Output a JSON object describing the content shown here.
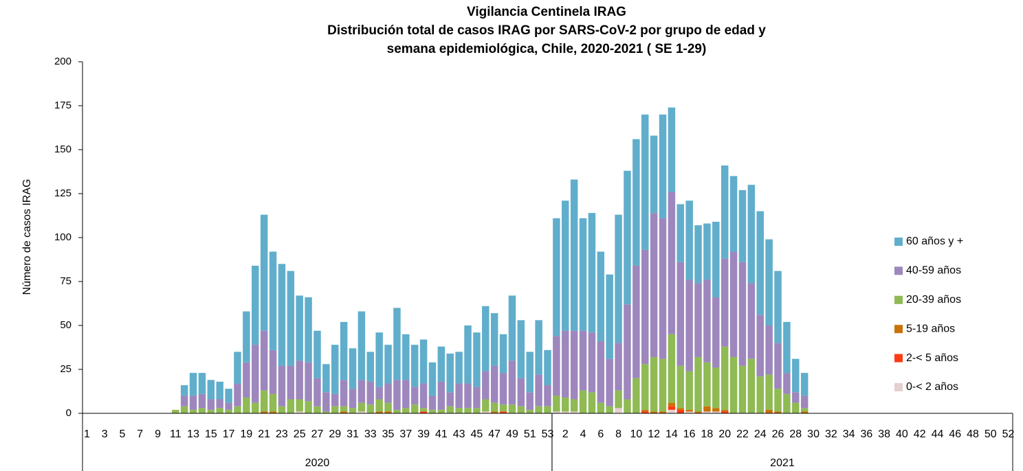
{
  "chart_data": {
    "type": "bar",
    "stacked": true,
    "title_lines": [
      "Vigilancia Centinela IRAG",
      "Distribución total de casos IRAG por SARS-CoV-2 por grupo de edad y",
      "semana epidemiológica,  Chile, 2020-2021 ( SE 1-29)"
    ],
    "y_label": "Número de casos IRAG",
    "groups": [
      {
        "label": "2020",
        "categories": [
          "1",
          null,
          "3",
          null,
          "5",
          null,
          "7",
          null,
          "9",
          null,
          "11",
          null,
          "13",
          null,
          "15",
          null,
          "17",
          null,
          "19",
          null,
          "21",
          null,
          "23",
          null,
          "25",
          null,
          "27",
          null,
          "29",
          null,
          "31",
          null,
          "33",
          null,
          "35",
          null,
          "37",
          null,
          "39",
          null,
          "41",
          null,
          "43",
          null,
          "45",
          null,
          "47",
          null,
          "49",
          null,
          "51",
          null,
          "53"
        ]
      },
      {
        "label": "2021",
        "categories": [
          null,
          "2",
          null,
          "4",
          null,
          "6",
          null,
          "8",
          null,
          "10",
          null,
          "12",
          null,
          "14",
          null,
          "16",
          null,
          "18",
          null,
          "20",
          null,
          "22",
          null,
          "24",
          null,
          "26",
          null,
          "28",
          null,
          "30",
          null,
          "32",
          null,
          "34",
          null,
          "36",
          null,
          "38",
          null,
          "40",
          null,
          "42",
          null,
          "44",
          null,
          "46",
          null,
          "48",
          null,
          "50",
          null,
          "52"
        ]
      }
    ],
    "series": [
      {
        "name": "0-< 2 años",
        "color": "#e4d0cf",
        "values": [
          0,
          0,
          0,
          0,
          0,
          0,
          0,
          0,
          0,
          0,
          0,
          0,
          0,
          0,
          0,
          0,
          0,
          0,
          0,
          0,
          0,
          0,
          0,
          0,
          1,
          0,
          0,
          0,
          0,
          0,
          0,
          1,
          0,
          0,
          0,
          0,
          0,
          0,
          0,
          0,
          0,
          0,
          0,
          0,
          0,
          1,
          0,
          0,
          0,
          0,
          0,
          0,
          0,
          1,
          1,
          1,
          0,
          0,
          0,
          0,
          3,
          0,
          0,
          0,
          0,
          0,
          2,
          0,
          1,
          0,
          1,
          1,
          0,
          0,
          0,
          0,
          0,
          0,
          0,
          0,
          0,
          0,
          0,
          0,
          0,
          0,
          0,
          0,
          0,
          0,
          0,
          0,
          0,
          0,
          0,
          0,
          0,
          0,
          0,
          0,
          0,
          0,
          0,
          0,
          0
        ]
      },
      {
        "name": "2-< 5 años",
        "color": "#ff3b14",
        "values": [
          0,
          0,
          0,
          0,
          0,
          0,
          0,
          0,
          0,
          0,
          0,
          0,
          0,
          0,
          0,
          0,
          0,
          0,
          0,
          0,
          0,
          0,
          0,
          0,
          0,
          0,
          0,
          0,
          0,
          0,
          0,
          0,
          0,
          0,
          0,
          0,
          0,
          0,
          1,
          0,
          0,
          0,
          0,
          0,
          0,
          0,
          0,
          1,
          0,
          0,
          0,
          0,
          0,
          0,
          0,
          0,
          0,
          0,
          0,
          0,
          0,
          0,
          0,
          1,
          0,
          0,
          2,
          2,
          0,
          0,
          0,
          0,
          1,
          0,
          0,
          0,
          0,
          0,
          0,
          0,
          0,
          0,
          0,
          0,
          0,
          0,
          0,
          0,
          0,
          0,
          0,
          0,
          0,
          0,
          0,
          0,
          0,
          0,
          0,
          0,
          0,
          0,
          0,
          0,
          0
        ]
      },
      {
        "name": "5-19 años",
        "color": "#c97208",
        "values": [
          0,
          0,
          0,
          0,
          0,
          0,
          0,
          0,
          0,
          0,
          0,
          0,
          0,
          0,
          0,
          0,
          0,
          0,
          0,
          0,
          1,
          1,
          0,
          0,
          0,
          0,
          0,
          0,
          0,
          1,
          0,
          0,
          0,
          1,
          1,
          0,
          0,
          0,
          0,
          0,
          0,
          0,
          0,
          0,
          0,
          0,
          1,
          0,
          0,
          0,
          0,
          0,
          0,
          0,
          0,
          0,
          0,
          0,
          0,
          0,
          0,
          0,
          0,
          1,
          1,
          1,
          2,
          1,
          1,
          1,
          3,
          2,
          1,
          0,
          0,
          0,
          0,
          2,
          1,
          0,
          0,
          1,
          0,
          0,
          0,
          0,
          0,
          0,
          0,
          0,
          0,
          0,
          0,
          0,
          0,
          0,
          0,
          0,
          0,
          0,
          0,
          0,
          0,
          0,
          0
        ]
      },
      {
        "name": "20-39 años",
        "color": "#8fba54",
        "values": [
          0,
          0,
          0,
          0,
          0,
          0,
          0,
          0,
          0,
          0,
          2,
          4,
          2,
          3,
          2,
          3,
          2,
          4,
          9,
          6,
          12,
          10,
          4,
          8,
          7,
          7,
          4,
          1,
          4,
          3,
          3,
          5,
          5,
          7,
          5,
          2,
          3,
          5,
          2,
          2,
          2,
          4,
          3,
          3,
          3,
          7,
          5,
          4,
          5,
          4,
          2,
          4,
          4,
          9,
          8,
          7,
          13,
          12,
          6,
          4,
          10,
          8,
          20,
          26,
          31,
          30,
          39,
          24,
          22,
          31,
          25,
          23,
          36,
          32,
          27,
          31,
          21,
          20,
          13,
          11,
          6,
          2,
          0,
          0,
          0,
          0,
          0,
          0,
          0,
          0,
          0,
          0,
          0,
          0,
          0,
          0,
          0,
          0,
          0,
          0,
          0,
          0,
          0,
          0,
          0
        ]
      },
      {
        "name": "40-59 años",
        "color": "#9d87bd",
        "values": [
          0,
          0,
          0,
          0,
          0,
          0,
          0,
          0,
          0,
          0,
          0,
          6,
          8,
          8,
          6,
          5,
          4,
          13,
          20,
          33,
          34,
          25,
          23,
          19,
          22,
          22,
          16,
          11,
          7,
          15,
          11,
          13,
          13,
          7,
          11,
          17,
          16,
          10,
          14,
          8,
          16,
          8,
          14,
          14,
          12,
          16,
          21,
          18,
          25,
          16,
          10,
          18,
          12,
          34,
          38,
          39,
          34,
          34,
          35,
          27,
          27,
          54,
          64,
          65,
          82,
          80,
          81,
          59,
          52,
          42,
          47,
          40,
          50,
          60,
          59,
          43,
          35,
          28,
          26,
          12,
          6,
          7,
          0,
          0,
          0,
          0,
          0,
          0,
          0,
          0,
          0,
          0,
          0,
          0,
          0,
          0,
          0,
          0,
          0,
          0,
          0,
          0,
          0,
          0,
          0
        ]
      },
      {
        "name": "60 años y +",
        "color": "#60aecb",
        "values": [
          0,
          0,
          0,
          0,
          0,
          0,
          0,
          0,
          0,
          0,
          0,
          6,
          13,
          12,
          11,
          10,
          8,
          18,
          29,
          45,
          66,
          56,
          58,
          54,
          37,
          37,
          27,
          16,
          28,
          33,
          23,
          39,
          17,
          31,
          22,
          41,
          26,
          24,
          25,
          19,
          20,
          22,
          18,
          33,
          31,
          37,
          30,
          22,
          37,
          33,
          23,
          31,
          20,
          67,
          74,
          86,
          64,
          68,
          51,
          48,
          73,
          76,
          72,
          77,
          44,
          59,
          48,
          33,
          45,
          33,
          32,
          43,
          53,
          43,
          41,
          56,
          59,
          49,
          41,
          29,
          19,
          13,
          0,
          0,
          0,
          0,
          0,
          0,
          0,
          0,
          0,
          0,
          0,
          0,
          0,
          0,
          0,
          0,
          0,
          0,
          0,
          0,
          0,
          0,
          0
        ]
      }
    ],
    "ylim": [
      0,
      200
    ],
    "yticks": [
      0,
      25,
      50,
      75,
      100,
      125,
      150,
      175,
      200
    ],
    "legend": "right"
  }
}
